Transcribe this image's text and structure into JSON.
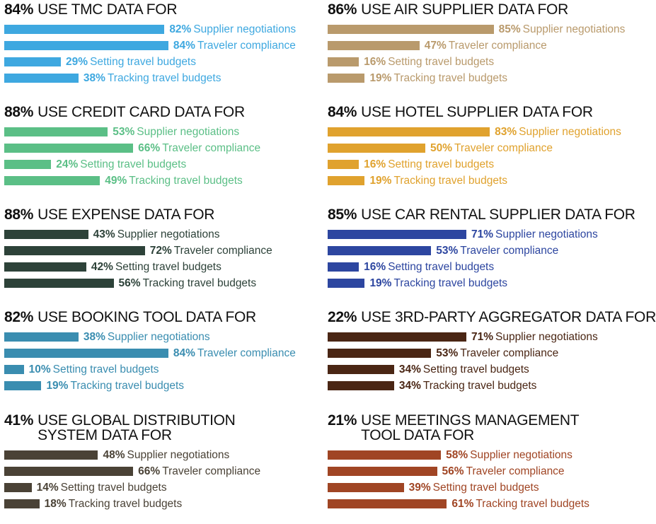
{
  "chart_data": [
    {
      "type": "bar",
      "title_figure": "84%",
      "title_lines": [
        "USE TMC DATA FOR"
      ],
      "color": "#3ea8e0",
      "label_color": "#3ea8e0",
      "xlim": [
        0,
        100
      ],
      "categories": [
        "Supplier negotiations",
        "Traveler compliance",
        "Setting travel budgets",
        "Tracking travel budgets"
      ],
      "values": [
        82,
        84,
        29,
        38
      ],
      "value_labels": [
        "82%",
        "84%",
        "29%",
        "38%"
      ]
    },
    {
      "type": "bar",
      "title_figure": "88%",
      "title_lines": [
        "USE CREDIT CARD DATA FOR"
      ],
      "color": "#5bbf86",
      "label_color": "#5bbf86",
      "xlim": [
        0,
        100
      ],
      "categories": [
        "Supplier negotiations",
        "Traveler compliance",
        "Setting travel budgets",
        "Tracking travel budgets"
      ],
      "values": [
        53,
        66,
        24,
        49
      ],
      "value_labels": [
        "53%",
        "66%",
        "24%",
        "49%"
      ]
    },
    {
      "type": "bar",
      "title_figure": "88%",
      "title_lines": [
        "USE EXPENSE DATA FOR"
      ],
      "color": "#2d4239",
      "label_color": "#2d4239",
      "xlim": [
        0,
        100
      ],
      "categories": [
        "Supplier negotiations",
        "Traveler compliance",
        "Setting travel budgets",
        "Tracking travel budgets"
      ],
      "values": [
        43,
        72,
        42,
        56
      ],
      "value_labels": [
        "43%",
        "72%",
        "42%",
        "56%"
      ]
    },
    {
      "type": "bar",
      "title_figure": "82%",
      "title_lines": [
        "USE BOOKING TOOL DATA FOR"
      ],
      "color": "#3a8db0",
      "label_color": "#3a8db0",
      "xlim": [
        0,
        100
      ],
      "categories": [
        "Supplier negotiations",
        "Traveler compliance",
        "Setting travel budgets",
        "Tracking travel budgets"
      ],
      "values": [
        38,
        84,
        10,
        19
      ],
      "value_labels": [
        "38%",
        "84%",
        "10%",
        "19%"
      ]
    },
    {
      "type": "bar",
      "title_figure": "41%",
      "title_lines": [
        "USE GLOBAL DISTRIBUTION",
        "SYSTEM DATA FOR"
      ],
      "color": "#4a4236",
      "label_color": "#4a4236",
      "xlim": [
        0,
        100
      ],
      "categories": [
        "Supplier negotiations",
        "Traveler compliance",
        "Setting travel budgets",
        "Tracking travel budgets"
      ],
      "values": [
        48,
        66,
        14,
        18
      ],
      "value_labels": [
        "48%",
        "66%",
        "14%",
        "18%"
      ]
    },
    {
      "type": "bar",
      "title_figure": "86%",
      "title_lines": [
        "USE AIR SUPPLIER DATA FOR"
      ],
      "color": "#b99a6c",
      "label_color": "#b99a6c",
      "xlim": [
        0,
        100
      ],
      "categories": [
        "Supplier negotiations",
        "Traveler compliance",
        "Setting travel budgets",
        "Tracking travel budgets"
      ],
      "values": [
        85,
        47,
        16,
        19
      ],
      "value_labels": [
        "85%",
        "47%",
        "16%",
        "19%"
      ]
    },
    {
      "type": "bar",
      "title_figure": "84%",
      "title_lines": [
        "USE HOTEL SUPPLIER DATA FOR"
      ],
      "color": "#e0a22e",
      "label_color": "#e0a22e",
      "xlim": [
        0,
        100
      ],
      "categories": [
        "Supplier negotiations",
        "Traveler compliance",
        "Setting travel budgets",
        "Tracking travel budgets"
      ],
      "values": [
        83,
        50,
        16,
        19
      ],
      "value_labels": [
        "83%",
        "50%",
        "16%",
        "19%"
      ]
    },
    {
      "type": "bar",
      "title_figure": "85%",
      "title_lines": [
        "USE CAR RENTAL SUPPLIER DATA FOR"
      ],
      "color": "#2d46a0",
      "label_color": "#2d46a0",
      "xlim": [
        0,
        100
      ],
      "categories": [
        "Supplier negotiations",
        "Traveler compliance",
        "Setting travel budgets",
        "Tracking travel budgets"
      ],
      "values": [
        71,
        53,
        16,
        19
      ],
      "value_labels": [
        "71%",
        "53%",
        "16%",
        "19%"
      ]
    },
    {
      "type": "bar",
      "title_figure": "22%",
      "title_lines": [
        "USE 3RD-PARTY AGGREGATOR DATA FOR"
      ],
      "color": "#4a2614",
      "label_color": "#4a2614",
      "xlim": [
        0,
        100
      ],
      "categories": [
        "Supplier negotiations",
        "Traveler compliance",
        "Setting travel budgets",
        "Tracking travel budgets"
      ],
      "values": [
        71,
        53,
        34,
        34
      ],
      "value_labels": [
        "71%",
        "53%",
        "34%",
        "34%"
      ]
    },
    {
      "type": "bar",
      "title_figure": "21%",
      "title_lines": [
        "USE MEETINGS MANAGEMENT",
        "TOOL DATA FOR"
      ],
      "color": "#a04524",
      "label_color": "#a04524",
      "xlim": [
        0,
        100
      ],
      "categories": [
        "Supplier negotiations",
        "Traveler compliance",
        "Setting travel budgets",
        "Tracking travel budgets"
      ],
      "values": [
        58,
        56,
        39,
        61
      ],
      "value_labels": [
        "58%",
        "56%",
        "39%",
        "61%"
      ]
    }
  ]
}
